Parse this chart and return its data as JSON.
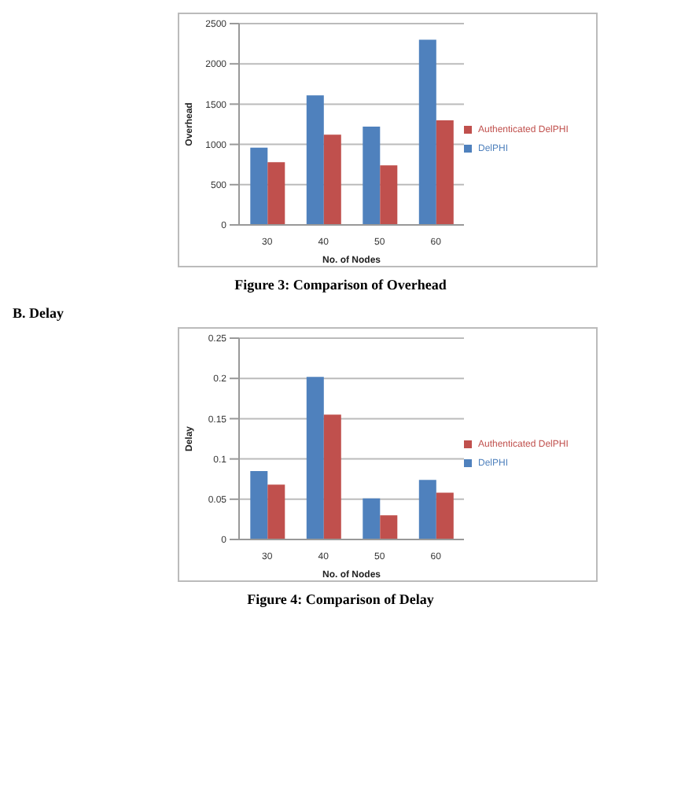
{
  "chart_data": [
    {
      "type": "bar",
      "xlabel": "No. of Nodes",
      "ylabel": "Overhead",
      "categories": [
        "30",
        "40",
        "50",
        "60"
      ],
      "series": [
        {
          "name": "DelPHI",
          "color": "#4f81bd",
          "values": [
            960,
            1610,
            1220,
            2300
          ]
        },
        {
          "name": "Authenticated DelPHI",
          "color": "#c0504d",
          "values": [
            780,
            1120,
            740,
            1300
          ]
        }
      ],
      "ylim": [
        0,
        2500
      ],
      "yticks": [
        0,
        500,
        1000,
        1500,
        2000,
        2500
      ],
      "grid": "y",
      "legend": "right",
      "annotations": [
        "Figure 3: Comparison of Overhead"
      ]
    },
    {
      "type": "bar",
      "xlabel": "No. of Nodes",
      "ylabel": "Delay",
      "categories": [
        "30",
        "40",
        "50",
        "60"
      ],
      "series": [
        {
          "name": "DelPHI",
          "color": "#4f81bd",
          "values": [
            0.085,
            0.202,
            0.051,
            0.074
          ]
        },
        {
          "name": "Authenticated DelPHI",
          "color": "#c0504d",
          "values": [
            0.068,
            0.155,
            0.03,
            0.058
          ]
        }
      ],
      "ylim": [
        0,
        0.25
      ],
      "yticks": [
        0,
        0.05,
        0.1,
        0.15,
        0.2,
        0.25
      ],
      "grid": "y",
      "legend": "right",
      "annotations": [
        "B. Delay",
        "Figure 4: Comparison of Delay"
      ]
    }
  ]
}
